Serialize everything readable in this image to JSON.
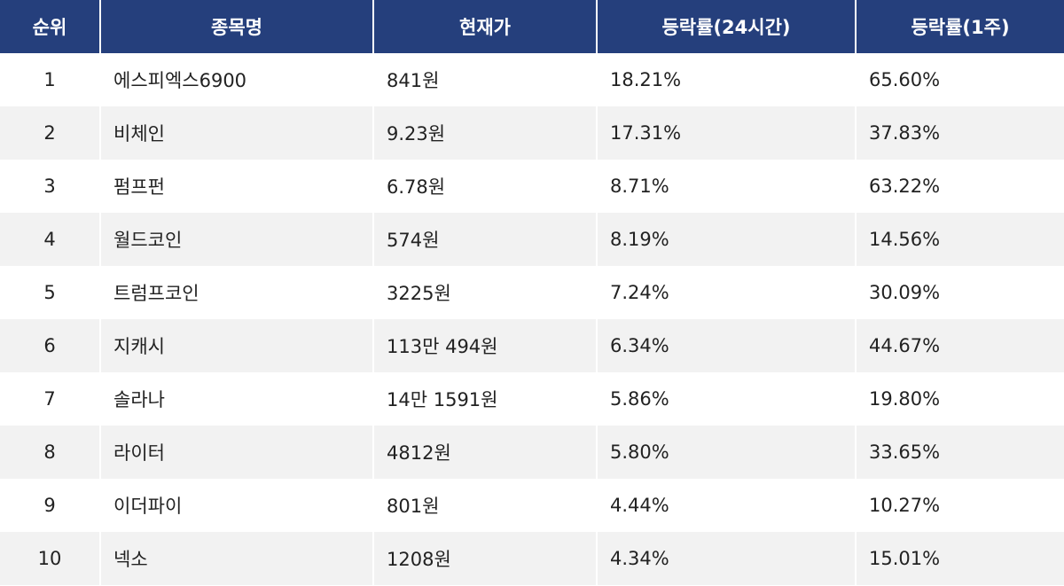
{
  "table": {
    "header": [
      "순위",
      "종목명",
      "현재가",
      "등락률(24시간)",
      "등락률(1주)"
    ],
    "rows": [
      [
        "1",
        "에스피엑스6900",
        "841원",
        "18.21%",
        "65.60%"
      ],
      [
        "2",
        "비체인",
        "9.23원",
        "17.31%",
        "37.83%"
      ],
      [
        "3",
        "펌프펀",
        "6.78원",
        "8.71%",
        "63.22%"
      ],
      [
        "4",
        "월드코인",
        "574원",
        "8.19%",
        "14.56%"
      ],
      [
        "5",
        "트럼프코인",
        "3225원",
        "7.24%",
        "30.09%"
      ],
      [
        "6",
        "지캐시",
        "113만 494원",
        "6.34%",
        "44.67%"
      ],
      [
        "7",
        "솔라나",
        "14만 1591원",
        "5.86%",
        "19.80%"
      ],
      [
        "8",
        "라이터",
        "4812원",
        "5.80%",
        "33.65%"
      ],
      [
        "9",
        "이더파이",
        "801원",
        "4.44%",
        "10.27%"
      ],
      [
        "10",
        "넥소",
        "1208원",
        "4.34%",
        "15.01%"
      ]
    ]
  }
}
